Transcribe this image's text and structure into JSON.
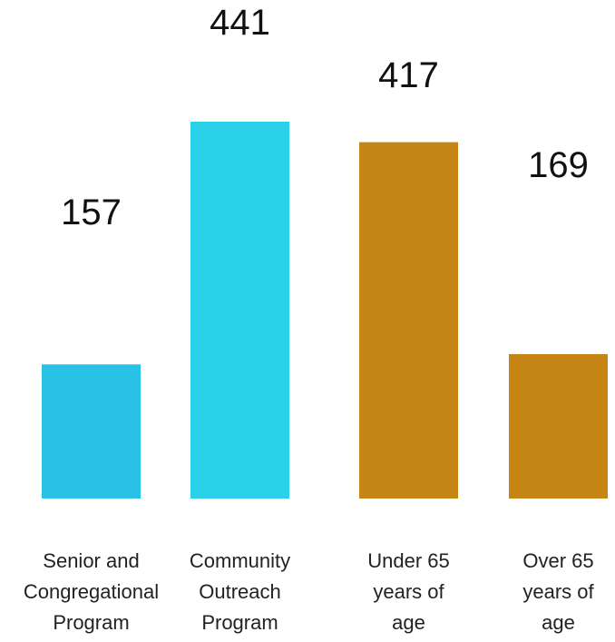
{
  "chart_data": {
    "type": "bar",
    "categories": [
      [
        "Senior and",
        "Congregational",
        "Program"
      ],
      [
        "Community",
        "Outreach",
        "Program"
      ],
      [
        "Under 65",
        "years of",
        "age"
      ],
      [
        "Over 65",
        "years of",
        "age"
      ]
    ],
    "values": [
      157,
      441,
      417,
      169
    ],
    "value_labels": [
      "157",
      "441",
      "417",
      "169"
    ],
    "bar_colors": [
      "#29c2e6",
      "#2bd1e8",
      "#c68616",
      "#c68616"
    ],
    "title": "",
    "xlabel": "",
    "ylabel": "",
    "grid": false,
    "legend": "none"
  }
}
